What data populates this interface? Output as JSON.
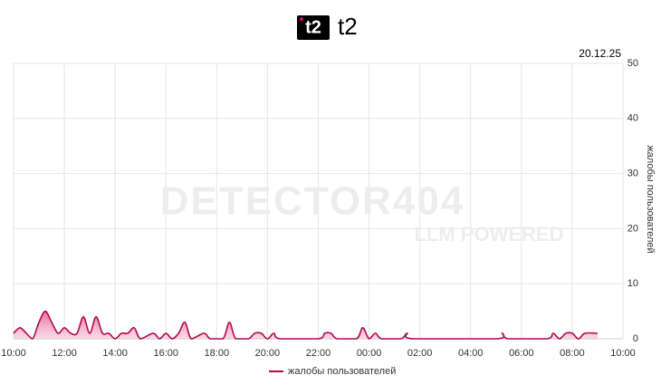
{
  "chart_data": {
    "type": "area",
    "title": "t2",
    "logo_text": "t2",
    "date": "20.12.25",
    "y_label": "жалобы пользователей",
    "watermark": "DETECTOR404",
    "watermark_sub": "LLM POWERED",
    "grid": true,
    "legend": "bottom",
    "xlim": [
      10,
      34
    ],
    "xticks": [
      {
        "value": 10,
        "label": "10:00"
      },
      {
        "value": 12,
        "label": "12:00"
      },
      {
        "value": 14,
        "label": "14:00"
      },
      {
        "value": 16,
        "label": "16:00"
      },
      {
        "value": 18,
        "label": "18:00"
      },
      {
        "value": 20,
        "label": "20:00"
      },
      {
        "value": 22,
        "label": "22:00"
      },
      {
        "value": 24,
        "label": "00:00"
      },
      {
        "value": 26,
        "label": "02:00"
      },
      {
        "value": 28,
        "label": "04:00"
      },
      {
        "value": 30,
        "label": "06:00"
      },
      {
        "value": 32,
        "label": "08:00"
      },
      {
        "value": 34,
        "label": "10:00"
      }
    ],
    "ylim": [
      0,
      50
    ],
    "yticks": [
      0,
      10,
      20,
      30,
      40,
      50
    ],
    "series": [
      {
        "name": "жалобы пользователей",
        "color": "#b0084f",
        "x": [
          10,
          10.25,
          10.5,
          10.75,
          11,
          11.25,
          11.5,
          11.75,
          12,
          12.25,
          12.5,
          12.75,
          13,
          13.25,
          13.5,
          13.75,
          14,
          14.25,
          14.5,
          14.75,
          15,
          15.5,
          15.75,
          16,
          16.25,
          16.5,
          16.75,
          17,
          17.5,
          17.75,
          18.25,
          18.5,
          18.75,
          19.25,
          19.5,
          19.75,
          20,
          20.25,
          20.5,
          22,
          22.25,
          22.5,
          22.75,
          23.5,
          23.75,
          24,
          24.25,
          24.5,
          25.25,
          25.5,
          25.75,
          29,
          29.25,
          29.5,
          31,
          31.25,
          31.5,
          31.75,
          32,
          32.25,
          32.5,
          33
        ],
        "values": [
          1,
          2,
          1,
          0,
          3,
          5,
          3,
          1,
          2,
          1,
          1,
          4,
          1,
          4,
          1,
          1,
          0,
          1,
          1,
          2,
          0,
          1,
          0,
          1,
          0,
          1,
          3,
          0,
          1,
          0,
          0,
          3,
          0,
          0,
          1,
          1,
          0,
          1,
          0,
          0,
          1,
          1,
          0,
          0,
          2,
          0,
          1,
          0,
          0,
          1,
          0,
          0,
          1,
          0,
          0,
          1,
          0,
          1,
          1,
          0,
          1,
          1
        ]
      }
    ]
  }
}
